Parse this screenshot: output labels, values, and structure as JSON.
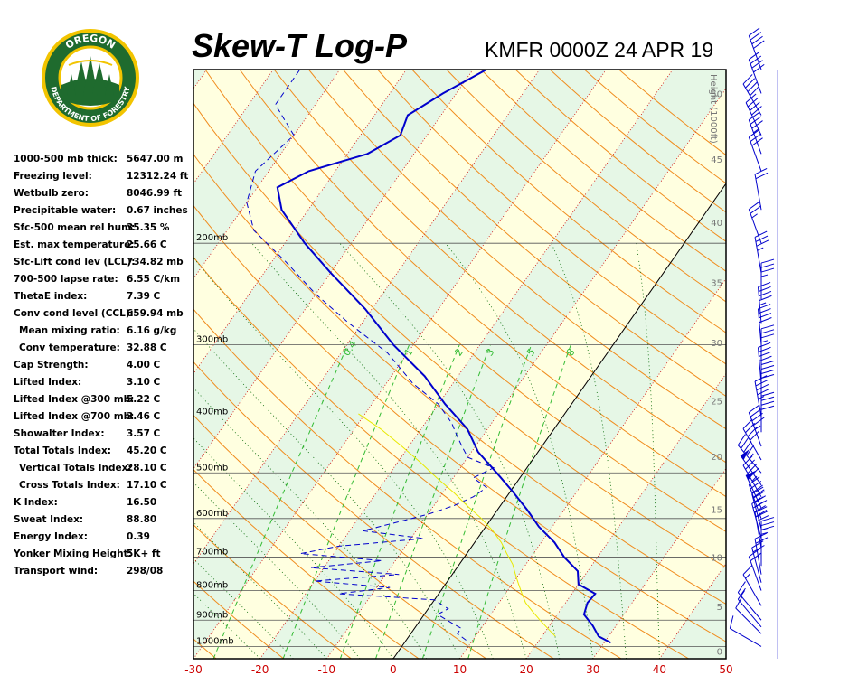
{
  "header": {
    "title": "Skew-T Log-P",
    "station": "KMFR 0000Z 24 APR 19"
  },
  "logo": {
    "top_text": "OREGON",
    "bottom_text": "DEPARTMENT OF FORESTRY",
    "colors": {
      "ring": "#f2c400",
      "fill": "#1f6b2e",
      "sky": "#ffffff",
      "text": "#ffffff"
    }
  },
  "stats": [
    {
      "label": "1000-500 mb thick:",
      "value": "5647.00 m"
    },
    {
      "label": "Freezing level:",
      "value": "12312.24 ft"
    },
    {
      "label": "Wetbulb zero:",
      "value": "8046.99 ft"
    },
    {
      "label": "Precipitable water:",
      "value": "0.67 inches"
    },
    {
      "label": "Sfc-500 mean rel hum:",
      "value": "35.35 %"
    },
    {
      "label": "Est. max temperature:",
      "value": "25.66 C"
    },
    {
      "label": "Sfc-Lift cond lev (LCL):",
      "value": "734.82 mb"
    },
    {
      "label": "700-500 lapse rate:",
      "value": "6.55 C/km"
    },
    {
      "label": "ThetaE index:",
      "value": "7.39 C"
    },
    {
      "label": "Conv cond level (CCL):",
      "value": "659.94 mb"
    },
    {
      "label": "Mean mixing ratio:",
      "value": "6.16 g/kg",
      "indent": true
    },
    {
      "label": "Conv temperature:",
      "value": "32.88 C",
      "indent": true
    },
    {
      "label": "Cap Strength:",
      "value": "4.00 C"
    },
    {
      "label": "Lifted Index:",
      "value": "3.10 C"
    },
    {
      "label": "Lifted Index @300 mb:",
      "value": "5.22 C"
    },
    {
      "label": "Lifted Index @700 mb:",
      "value": "3.46 C"
    },
    {
      "label": "Showalter Index:",
      "value": "3.57 C"
    },
    {
      "label": "Total Totals Index:",
      "value": "45.20 C"
    },
    {
      "label": "Vertical Totals Index:",
      "value": "28.10 C",
      "indent": true
    },
    {
      "label": "Cross Totals Index:",
      "value": "17.10 C",
      "indent": true
    },
    {
      "label": "K Index:",
      "value": "16.50"
    },
    {
      "label": "Sweat Index:",
      "value": "88.80"
    },
    {
      "label": "Energy Index:",
      "value": "0.39"
    },
    {
      "label": "Yonker Mixing Height:",
      "value": "5K+ ft"
    },
    {
      "label": "Transport wind:",
      "value": "298/08"
    }
  ],
  "chart_data": {
    "type": "line",
    "xlabel": "",
    "ylabel": "",
    "xlim": [
      -30,
      50
    ],
    "ylim_mb": [
      1050,
      100
    ],
    "x_ticks": [
      -30,
      -20,
      -10,
      0,
      10,
      20,
      30,
      40,
      50
    ],
    "pressure_levels": [
      {
        "p": 200,
        "label": "200mb"
      },
      {
        "p": 300,
        "label": "300mb"
      },
      {
        "p": 400,
        "label": "400mb"
      },
      {
        "p": 500,
        "label": "500mb"
      },
      {
        "p": 600,
        "label": "600mb"
      },
      {
        "p": 700,
        "label": "700mb"
      },
      {
        "p": 800,
        "label": "800mb"
      },
      {
        "p": 900,
        "label": "900mb"
      },
      {
        "p": 1000,
        "label": "1000mb"
      }
    ],
    "height_axis": {
      "label": "Height (1000ft)",
      "ticks": [
        {
          "value": "0",
          "p": 1019
        },
        {
          "value": "5",
          "p": 852
        },
        {
          "value": "10",
          "p": 700
        },
        {
          "value": "15",
          "p": 578
        },
        {
          "value": "20",
          "p": 468
        },
        {
          "value": "25",
          "p": 375
        },
        {
          "value": "30",
          "p": 297
        },
        {
          "value": "35",
          "p": 234
        },
        {
          "value": "40",
          "p": 184
        },
        {
          "value": "45",
          "p": 143
        },
        {
          "value": "50",
          "p": 110
        }
      ]
    },
    "mixing_ratio_labels": [
      "0.4",
      "1",
      "2",
      "3",
      "5",
      "8"
    ],
    "series": [
      {
        "role": "temperature",
        "color": "#0000cc",
        "style": "solid",
        "points": [
          [
            31.0,
            985
          ],
          [
            28.5,
            960
          ],
          [
            26.5,
            920
          ],
          [
            24.0,
            880
          ],
          [
            23.3,
            840
          ],
          [
            23.5,
            810
          ],
          [
            20.0,
            780
          ],
          [
            18.5,
            740
          ],
          [
            15.0,
            700
          ],
          [
            12.0,
            660
          ],
          [
            8.0,
            620
          ],
          [
            4.5,
            580
          ],
          [
            0.5,
            540
          ],
          [
            -4.0,
            500
          ],
          [
            -9.0,
            460
          ],
          [
            -13.0,
            420
          ],
          [
            -19.0,
            380
          ],
          [
            -25.0,
            340
          ],
          [
            -33.0,
            300
          ],
          [
            -41.0,
            260
          ],
          [
            -50.0,
            225
          ],
          [
            -57.0,
            200
          ],
          [
            -64.0,
            175
          ],
          [
            -67.0,
            160
          ],
          [
            -64.0,
            150
          ],
          [
            -57.0,
            140
          ],
          [
            -54.0,
            130
          ],
          [
            -55.0,
            120
          ],
          [
            -52.0,
            110
          ],
          [
            -48.0,
            100
          ]
        ]
      },
      {
        "role": "dewpoint",
        "color": "#0000cc",
        "style": "dashed",
        "points": [
          [
            9.0,
            975
          ],
          [
            7.0,
            950
          ],
          [
            7.0,
            930
          ],
          [
            5.0,
            910
          ],
          [
            2.0,
            880
          ],
          [
            3.0,
            860
          ],
          [
            0.0,
            830
          ],
          [
            -15.0,
            810
          ],
          [
            -8.0,
            790
          ],
          [
            -20.0,
            770
          ],
          [
            -8.0,
            750
          ],
          [
            -22.0,
            730
          ],
          [
            -12.0,
            710
          ],
          [
            -25.0,
            690
          ],
          [
            -20.0,
            670
          ],
          [
            -8.0,
            650
          ],
          [
            -18.0,
            630
          ],
          [
            -14.0,
            610
          ],
          [
            -10.0,
            590
          ],
          [
            -7.0,
            570
          ],
          [
            -5.0,
            550
          ],
          [
            -4.0,
            530
          ],
          [
            -7.0,
            510
          ],
          [
            -5.0,
            490
          ],
          [
            -10.0,
            470
          ],
          [
            -12.0,
            450
          ],
          [
            -14.0,
            430
          ],
          [
            -16.0,
            410
          ],
          [
            -20.0,
            380
          ],
          [
            -26.0,
            350
          ],
          [
            -33.0,
            310
          ],
          [
            -42.0,
            275
          ],
          [
            -50.0,
            245
          ],
          [
            -58.0,
            215
          ],
          [
            -66.0,
            190
          ],
          [
            -70.0,
            170
          ],
          [
            -72.0,
            150
          ],
          [
            -70.0,
            130
          ],
          [
            -76.0,
            115
          ],
          [
            -76.0,
            100
          ]
        ]
      },
      {
        "role": "parcel",
        "color": "#e8e800",
        "style": "solid",
        "points": [
          [
            22.0,
            960
          ],
          [
            20.0,
            930
          ],
          [
            18.0,
            900
          ],
          [
            16.0,
            870
          ],
          [
            14.0,
            840
          ],
          [
            12.5,
            810
          ],
          [
            11.0,
            780
          ],
          [
            9.5,
            750
          ],
          [
            8.0,
            720
          ],
          [
            6.0,
            690
          ],
          [
            4.0,
            660
          ],
          [
            1.5,
            630
          ],
          [
            -1.5,
            600
          ],
          [
            -5.0,
            570
          ],
          [
            -8.5,
            540
          ],
          [
            -12.5,
            510
          ],
          [
            -16.5,
            480
          ],
          [
            -21.0,
            450
          ],
          [
            -26.0,
            420
          ],
          [
            -31.0,
            395
          ]
        ]
      }
    ],
    "wind_profile": [
      {
        "p": 1000,
        "dir": 300,
        "spd": 10
      },
      {
        "p": 950,
        "dir": 315,
        "spd": 10
      },
      {
        "p": 925,
        "dir": 320,
        "spd": 10
      },
      {
        "p": 900,
        "dir": 320,
        "spd": 15
      },
      {
        "p": 850,
        "dir": 330,
        "spd": 15
      },
      {
        "p": 800,
        "dir": 340,
        "spd": 20
      },
      {
        "p": 775,
        "dir": 345,
        "spd": 20
      },
      {
        "p": 750,
        "dir": 350,
        "spd": 20
      },
      {
        "p": 725,
        "dir": 0,
        "spd": 15
      },
      {
        "p": 700,
        "dir": 0,
        "spd": 25
      },
      {
        "p": 675,
        "dir": 350,
        "spd": 30
      },
      {
        "p": 650,
        "dir": 345,
        "spd": 40
      },
      {
        "p": 625,
        "dir": 345,
        "spd": 40
      },
      {
        "p": 600,
        "dir": 340,
        "spd": 45
      },
      {
        "p": 575,
        "dir": 335,
        "spd": 50
      },
      {
        "p": 550,
        "dir": 330,
        "spd": 45
      },
      {
        "p": 525,
        "dir": 325,
        "spd": 50
      },
      {
        "p": 500,
        "dir": 320,
        "spd": 45
      },
      {
        "p": 475,
        "dir": 330,
        "spd": 40
      },
      {
        "p": 450,
        "dir": 340,
        "spd": 45
      },
      {
        "p": 425,
        "dir": 0,
        "spd": 40
      },
      {
        "p": 400,
        "dir": 350,
        "spd": 45
      },
      {
        "p": 375,
        "dir": 0,
        "spd": 40
      },
      {
        "p": 350,
        "dir": 355,
        "spd": 40
      },
      {
        "p": 325,
        "dir": 0,
        "spd": 35
      },
      {
        "p": 300,
        "dir": 355,
        "spd": 40
      },
      {
        "p": 275,
        "dir": 355,
        "spd": 45
      },
      {
        "p": 250,
        "dir": 0,
        "spd": 35
      },
      {
        "p": 225,
        "dir": 350,
        "spd": 35
      },
      {
        "p": 200,
        "dir": 340,
        "spd": 25
      },
      {
        "p": 175,
        "dir": 350,
        "spd": 20
      },
      {
        "p": 150,
        "dir": 340,
        "spd": 30
      },
      {
        "p": 140,
        "dir": 340,
        "spd": 35
      },
      {
        "p": 130,
        "dir": 335,
        "spd": 40
      },
      {
        "p": 120,
        "dir": 330,
        "spd": 40
      },
      {
        "p": 110,
        "dir": 340,
        "spd": 40
      },
      {
        "p": 100,
        "dir": 340,
        "spd": 40
      }
    ]
  }
}
